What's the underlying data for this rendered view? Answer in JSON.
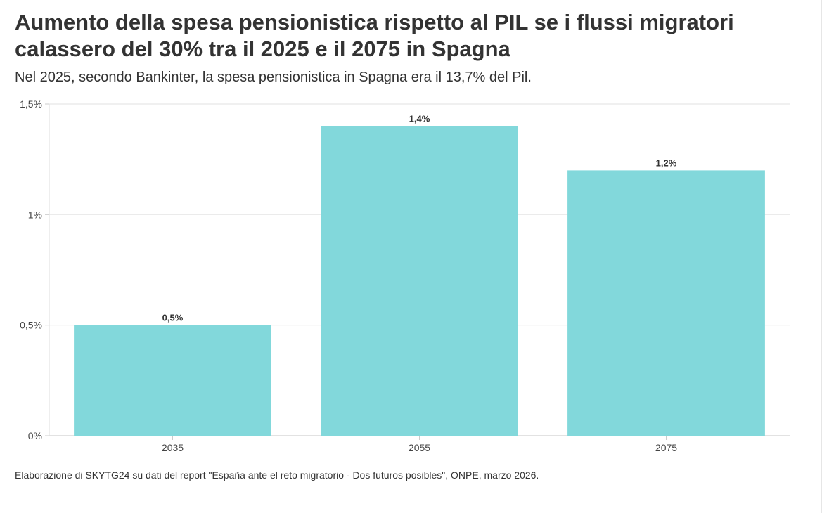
{
  "chart_data": {
    "type": "bar",
    "title": "Aumento della spesa pensionistica rispetto al PIL se i flussi migratori calassero del 30% tra il 2025 e il 2075 in Spagna",
    "subtitle": "Nel 2025, secondo Bankinter, la spesa pensionistica in Spagna era il 13,7% del Pil.",
    "categories": [
      "2035",
      "2055",
      "2075"
    ],
    "values": [
      0.5,
      1.4,
      1.2
    ],
    "data_labels": [
      "0,5%",
      "1,4%",
      "1,2%"
    ],
    "xlabel": "",
    "ylabel": "",
    "ylim": [
      0,
      1.5
    ],
    "y_ticks": [
      0,
      0.5,
      1,
      1.5
    ],
    "y_tick_labels": [
      "0%",
      "0,5%",
      "1%",
      "1,5%"
    ],
    "grid": true,
    "legend": "none",
    "bar_color": "#82d8db",
    "source": "Elaborazione di SKYTG24 su dati del report \"España ante el reto migratorio - Dos futuros posibles\", ONPE, marzo 2026."
  }
}
